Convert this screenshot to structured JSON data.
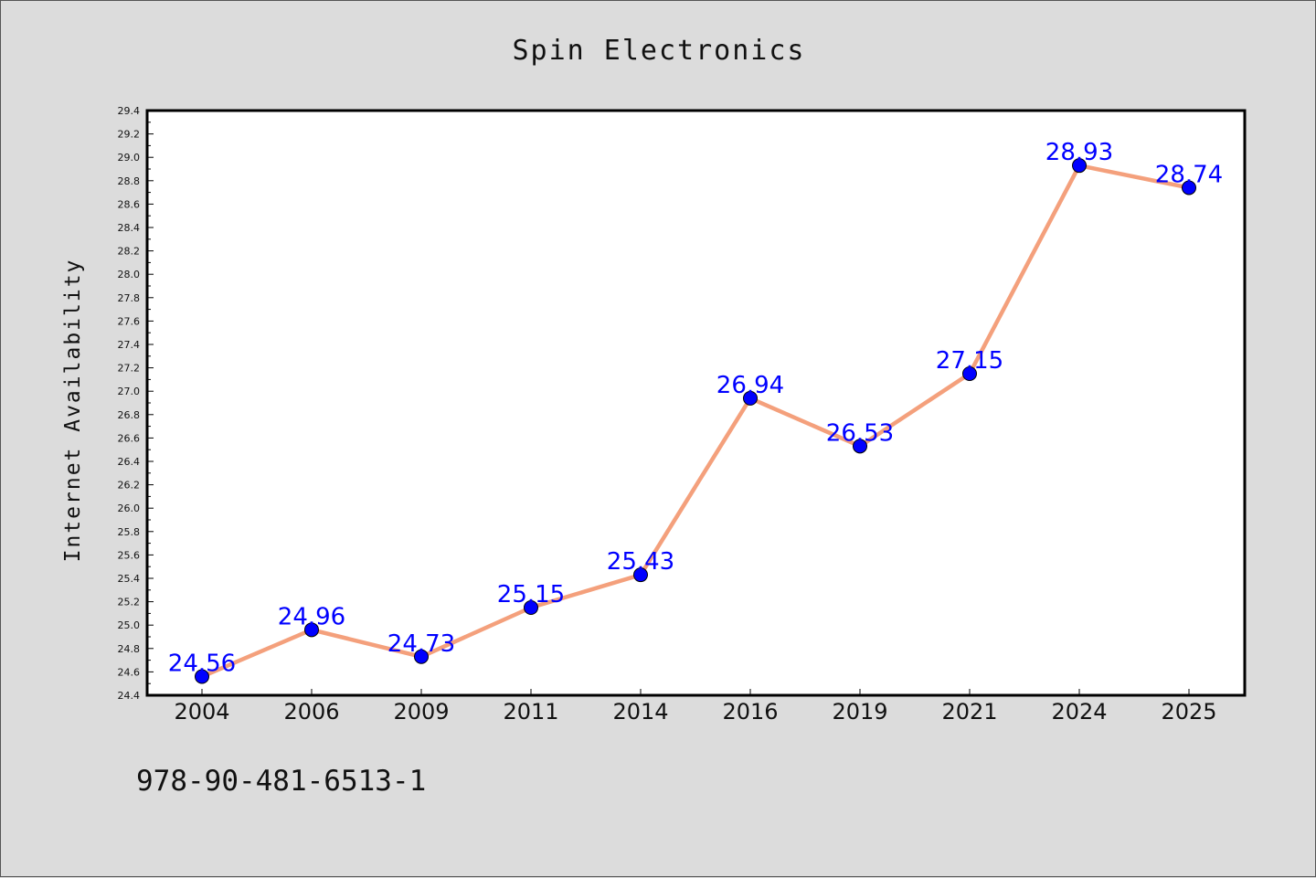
{
  "chart_data": {
    "type": "line",
    "title": "Spin Electronics",
    "xlabel": "",
    "ylabel": "Internet Availability",
    "categories": [
      "2004",
      "2006",
      "2009",
      "2011",
      "2014",
      "2016",
      "2019",
      "2021",
      "2024",
      "2025"
    ],
    "values": [
      24.56,
      24.96,
      24.73,
      25.15,
      25.43,
      26.94,
      26.53,
      27.15,
      28.93,
      28.74
    ],
    "data_labels": [
      "24.56",
      "24.96",
      "24.73",
      "25.15",
      "25.43",
      "26.94",
      "26.53",
      "27.15",
      "28.93",
      "28.74"
    ],
    "ylim": [
      24.4,
      29.4
    ],
    "yticks": [
      "24.4",
      "24.6",
      "24.8",
      "25.0",
      "25.2",
      "25.4",
      "25.6",
      "25.8",
      "26.0",
      "26.2",
      "26.4",
      "26.6",
      "26.8",
      "27.0",
      "27.2",
      "27.4",
      "27.6",
      "27.8",
      "28.0",
      "28.2",
      "28.4",
      "28.6",
      "28.8",
      "29.0",
      "29.2",
      "29.4"
    ],
    "grid": false,
    "line_color": "#f4a07c",
    "marker_color": "#0000ff",
    "label_color": "#0000ff"
  },
  "footer": {
    "isbn": "978-90-481-6513-1"
  }
}
